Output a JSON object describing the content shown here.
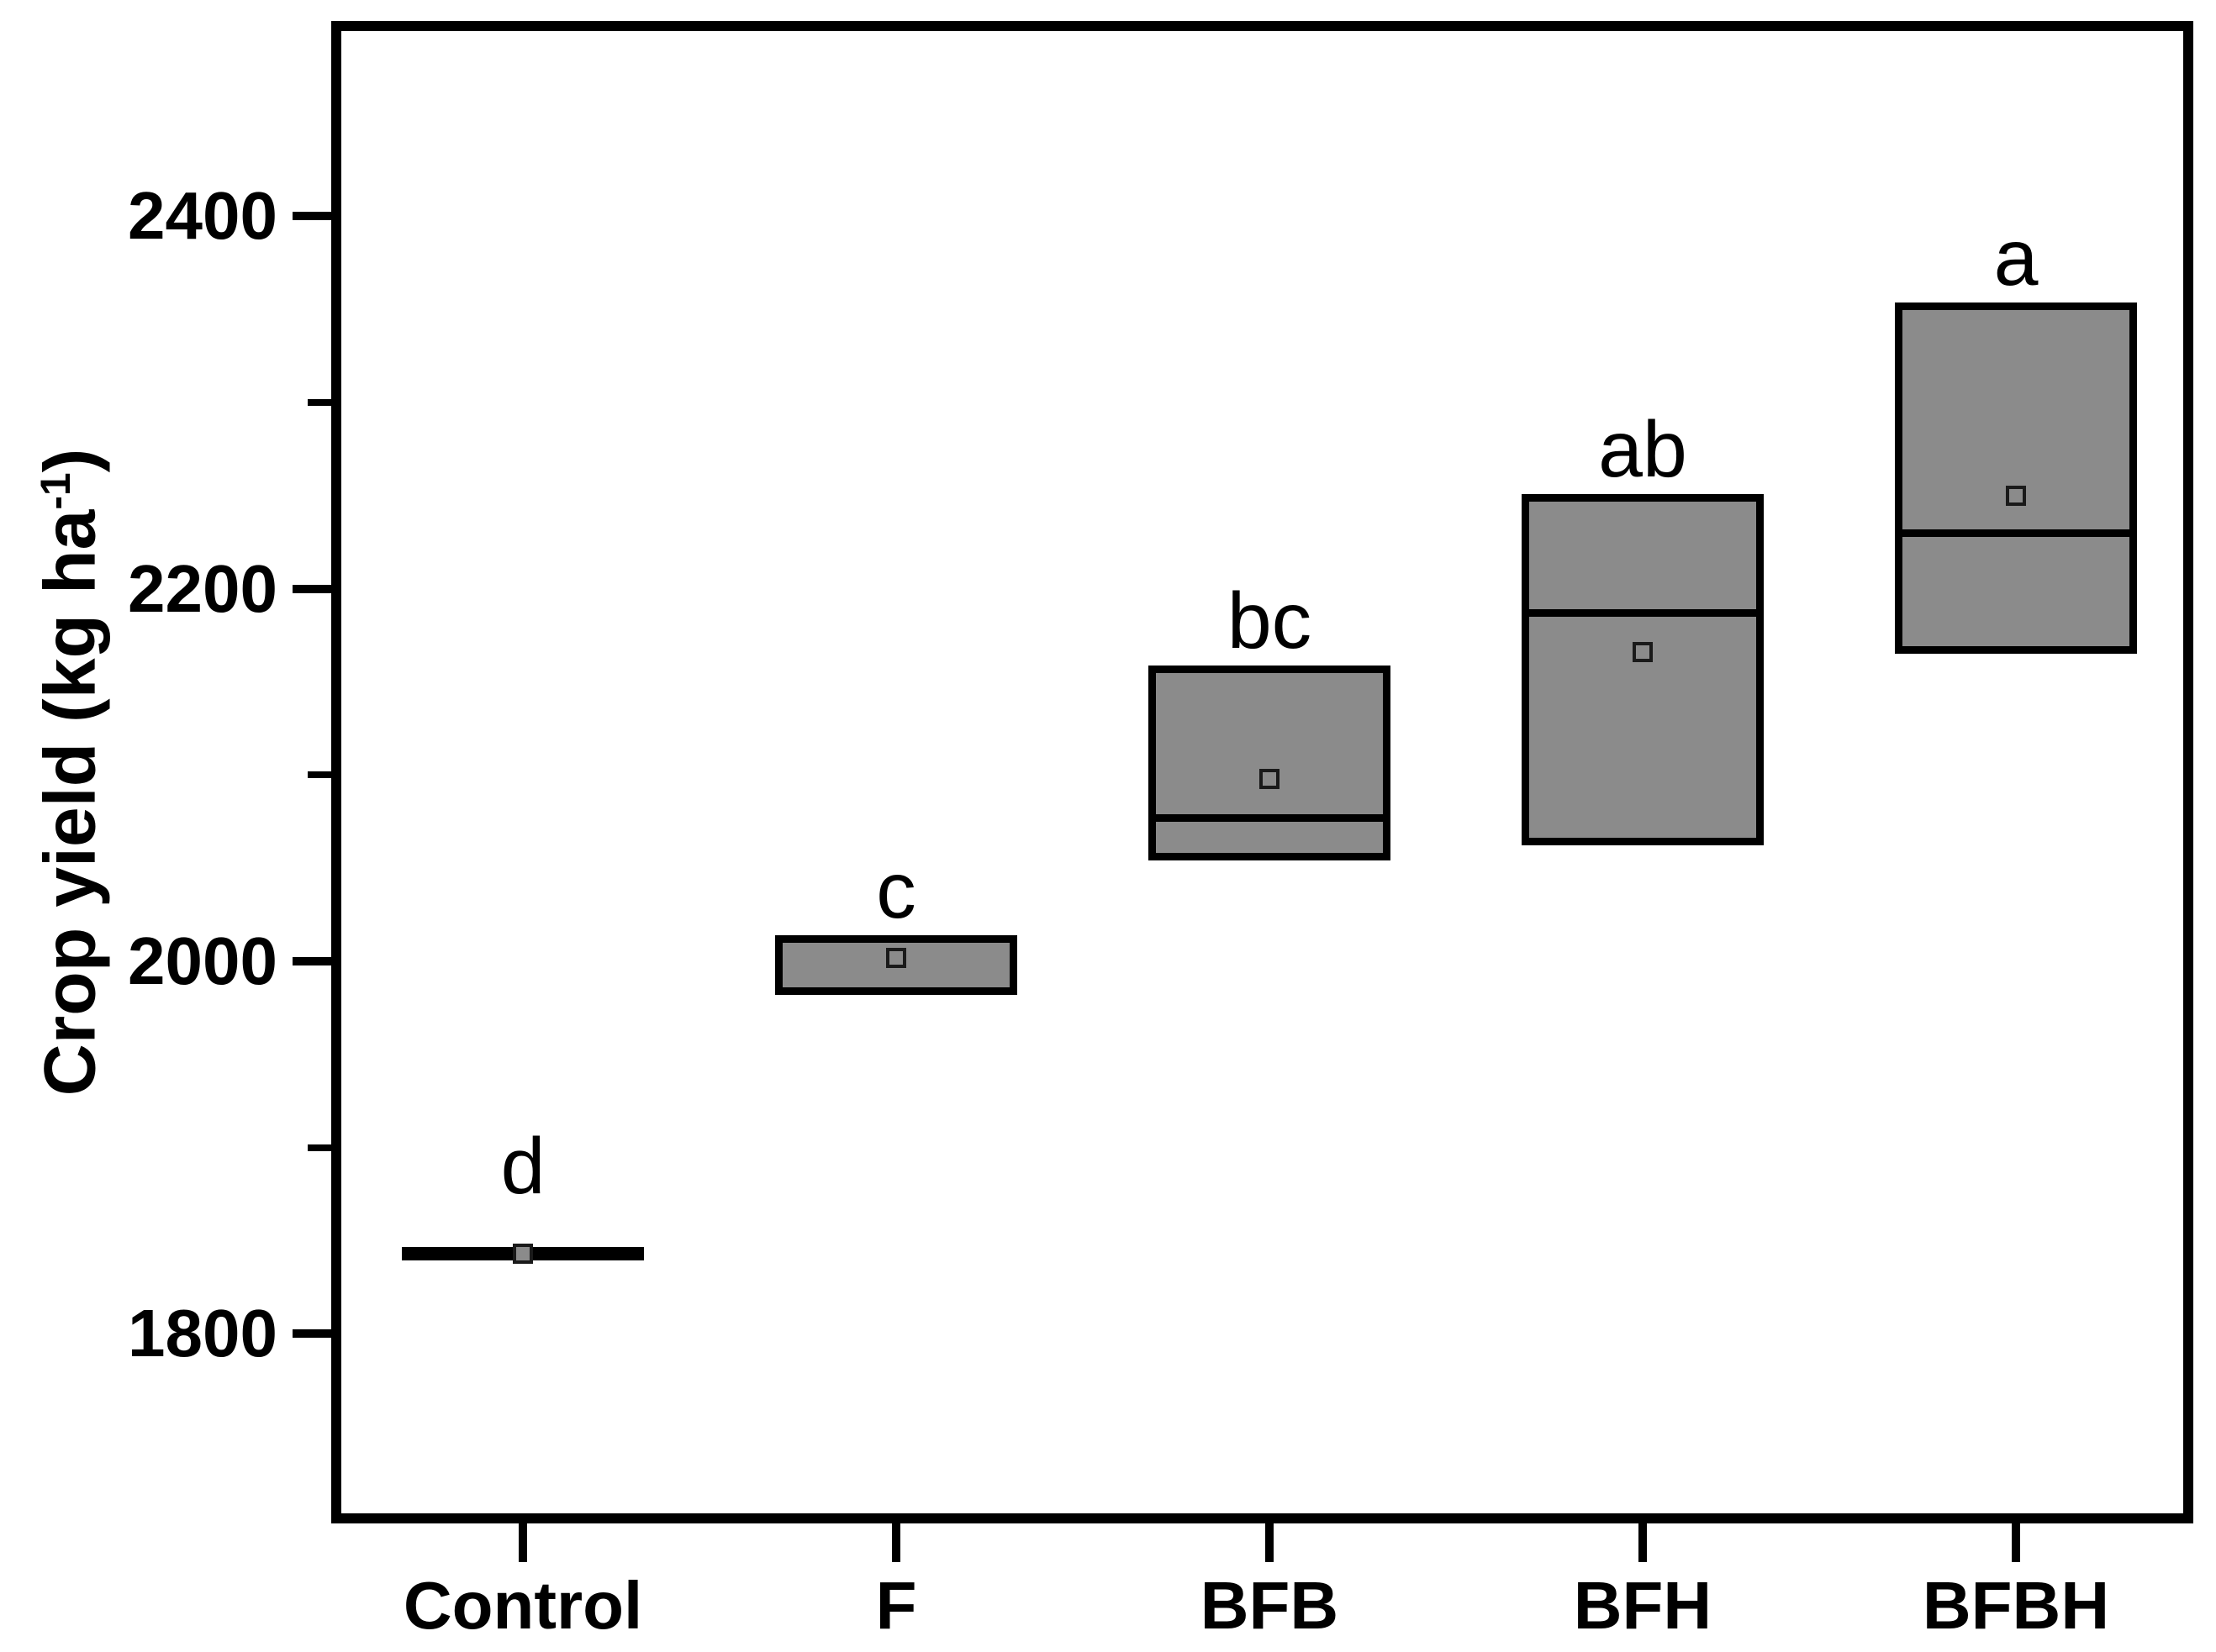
{
  "figure": {
    "background": "#ffffff",
    "y_title_main": "Crop yield (kg ha",
    "y_title_sup": "-1",
    "y_title_close": ")"
  },
  "chart_data": {
    "type": "box",
    "title": "",
    "xlabel": "",
    "ylabel": "Crop yield (kg ha⁻¹)",
    "ylim": [
      1700,
      2500
    ],
    "y_major_ticks": [
      2400,
      2200,
      2000,
      1800
    ],
    "y_minor_ticks": [
      2300,
      2100,
      1900
    ],
    "grid": false,
    "legend": "none",
    "mean_marker": "open-square",
    "categories": [
      "Control",
      "F",
      "BFB",
      "BFH",
      "BFBH"
    ],
    "series": [
      {
        "category": "Control",
        "style": "line",
        "q1": 1839,
        "median": 1843,
        "q3": 1847,
        "mean": 1843,
        "sig_letter": "d"
      },
      {
        "category": "F",
        "style": "box",
        "q1": 1984,
        "median": null,
        "q3": 2012,
        "mean": 2002,
        "sig_letter": "c"
      },
      {
        "category": "BFB",
        "style": "box",
        "q1": 2056,
        "median": 2077,
        "q3": 2157,
        "mean": 2098,
        "sig_letter": "bc"
      },
      {
        "category": "BFH",
        "style": "box",
        "q1": 2064,
        "median": 2187,
        "q3": 2249,
        "mean": 2166,
        "sig_letter": "ab"
      },
      {
        "category": "BFBH",
        "style": "box",
        "q1": 2167,
        "median": 2230,
        "q3": 2352,
        "mean": 2250,
        "sig_letter": "a"
      }
    ],
    "colors": {
      "box_fill": "#8b8b8b",
      "box_border": "#000000",
      "mean_marker_fill": "#8b8b8b",
      "text": "#000000",
      "background": "#ffffff"
    }
  }
}
